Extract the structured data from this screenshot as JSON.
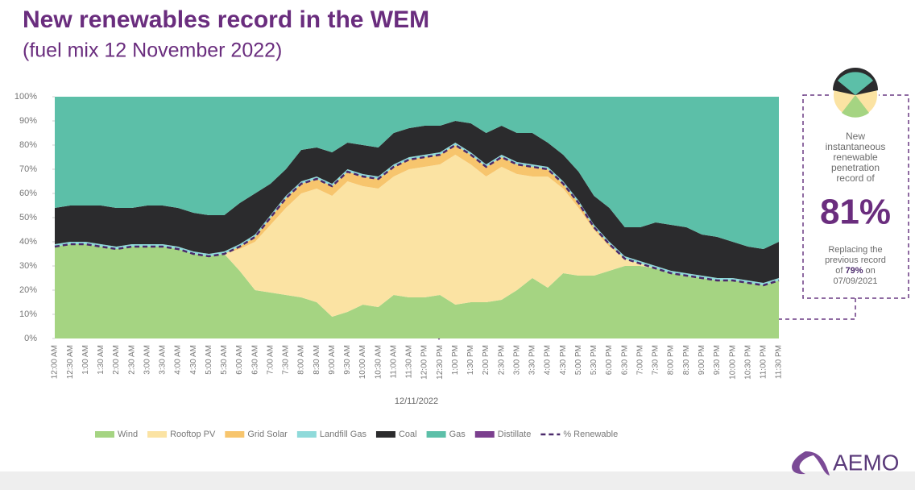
{
  "chart_data": {
    "type": "stacked_area",
    "title": "New renewables record in the WEM",
    "subtitle": "(fuel mix 12 November 2022)",
    "x_label": "12/11/2022",
    "categories": [
      "12:00 AM",
      "12:30 AM",
      "1:00 AM",
      "1:30 AM",
      "2:00 AM",
      "2:30 AM",
      "3:00 AM",
      "3:30 AM",
      "4:00 AM",
      "4:30 AM",
      "5:00 AM",
      "5:30 AM",
      "6:00 AM",
      "6:30 AM",
      "7:00 AM",
      "7:30 AM",
      "8:00 AM",
      "8:30 AM",
      "9:00 AM",
      "9:30 AM",
      "10:00 AM",
      "10:30 AM",
      "11:00 AM",
      "11:30 AM",
      "12:00 PM",
      "12:30 PM",
      "1:00 PM",
      "1:30 PM",
      "2:00 PM",
      "2:30 PM",
      "3:00 PM",
      "3:30 PM",
      "4:00 PM",
      "4:30 PM",
      "5:00 PM",
      "5:30 PM",
      "6:00 PM",
      "6:30 PM",
      "7:00 PM",
      "7:30 PM",
      "8:00 PM",
      "8:30 PM",
      "9:00 PM",
      "9:30 PM",
      "10:00 PM",
      "10:30 PM",
      "11:00 PM",
      "11:30 PM"
    ],
    "ylim": [
      0,
      100
    ],
    "yticks": [
      {
        "value": 0,
        "label": "0%"
      },
      {
        "value": 10,
        "label": "10%"
      },
      {
        "value": 20,
        "label": "20%"
      },
      {
        "value": 30,
        "label": "30%"
      },
      {
        "value": 40,
        "label": "40%"
      },
      {
        "value": 50,
        "label": "50%"
      },
      {
        "value": 60,
        "label": "60%"
      },
      {
        "value": 70,
        "label": "70%"
      },
      {
        "value": 80,
        "label": "80%"
      },
      {
        "value": 90,
        "label": "90%"
      },
      {
        "value": 100,
        "label": "100%"
      }
    ],
    "series": [
      {
        "name": "Wind",
        "color": "#a5d482",
        "values": [
          38,
          39,
          39,
          38,
          37,
          38,
          38,
          38,
          37,
          35,
          34,
          35,
          28,
          20,
          19,
          18,
          17,
          15,
          9,
          11,
          14,
          13,
          18,
          17,
          17,
          18,
          14,
          15,
          15,
          16,
          20,
          25,
          21,
          27,
          26,
          26,
          28,
          30,
          30,
          29,
          27,
          26,
          25,
          24,
          24,
          23,
          22,
          24
        ]
      },
      {
        "name": "Rooftop PV",
        "color": "#fbe3a3",
        "values": [
          0,
          0,
          0,
          0,
          0,
          0,
          0,
          0,
          0,
          0,
          0,
          0,
          9,
          20,
          28,
          36,
          43,
          47,
          50,
          54,
          49,
          49,
          49,
          53,
          54,
          54,
          62,
          57,
          52,
          55,
          48,
          42,
          46,
          35,
          28,
          19,
          10,
          3,
          1,
          0,
          0,
          0,
          0,
          0,
          0,
          0,
          0,
          0
        ]
      },
      {
        "name": "Grid Solar",
        "color": "#f7c56d",
        "values": [
          0,
          0,
          0,
          0,
          0,
          0,
          0,
          0,
          0,
          0,
          0,
          0,
          1,
          2,
          3,
          4,
          4,
          4,
          4,
          4,
          4,
          4,
          4,
          4,
          4,
          4,
          4,
          4,
          4,
          4,
          4,
          4,
          3,
          2,
          2,
          1,
          1,
          0,
          0,
          0,
          0,
          0,
          0,
          0,
          0,
          0,
          0,
          0
        ]
      },
      {
        "name": "Landfill Gas",
        "color": "#8fdada",
        "values": [
          1,
          1,
          1,
          1,
          1,
          1,
          1,
          1,
          1,
          1,
          1,
          1,
          1,
          1,
          1,
          1,
          1,
          1,
          1,
          1,
          1,
          1,
          1,
          1,
          1,
          1,
          1,
          1,
          1,
          1,
          1,
          1,
          1,
          1,
          1,
          1,
          1,
          1,
          1,
          1,
          1,
          1,
          1,
          1,
          1,
          1,
          1,
          1
        ]
      },
      {
        "name": "Coal",
        "color": "#2b2b2d",
        "values": [
          15,
          15,
          15,
          16,
          16,
          15,
          16,
          16,
          16,
          16,
          16,
          15,
          17,
          17,
          13,
          11,
          13,
          12,
          13,
          11,
          12,
          12,
          13,
          12,
          12,
          11,
          9,
          12,
          13,
          12,
          12,
          13,
          10,
          11,
          12,
          12,
          14,
          12,
          14,
          18,
          19,
          19,
          17,
          17,
          15,
          14,
          14,
          15
        ]
      },
      {
        "name": "Gas",
        "color": "#5cbfa8",
        "values": [
          46,
          45,
          45,
          45,
          46,
          46,
          45,
          45,
          46,
          48,
          49,
          49,
          44,
          40,
          36,
          30,
          22,
          21,
          23,
          19,
          20,
          21,
          15,
          13,
          12,
          12,
          10,
          11,
          15,
          12,
          15,
          15,
          19,
          24,
          31,
          41,
          46,
          54,
          54,
          52,
          53,
          54,
          57,
          58,
          60,
          62,
          63,
          60
        ]
      },
      {
        "name": "Distillate",
        "color": "#7b3f8e",
        "values": [
          0,
          0,
          0,
          0,
          0,
          0,
          0,
          0,
          0,
          0,
          0,
          0,
          0,
          0,
          0,
          0,
          0,
          0,
          0,
          0,
          0,
          0,
          0,
          0,
          0,
          0,
          0,
          0,
          0,
          0,
          0,
          0,
          0,
          0,
          0,
          0,
          0,
          0,
          0,
          0,
          0,
          0,
          0,
          0,
          0,
          0,
          0,
          0
        ]
      },
      {
        "name": "% Renewable",
        "color": "#4b2a6b",
        "kind": "line",
        "dash": true,
        "values": [
          38,
          39,
          39,
          38,
          37,
          38,
          38,
          38,
          37,
          35,
          34,
          35,
          38,
          42,
          50,
          58,
          64,
          66,
          63,
          69,
          67,
          66,
          71,
          74,
          75,
          76,
          80,
          76,
          71,
          75,
          72,
          71,
          70,
          64,
          56,
          46,
          39,
          33,
          31,
          29,
          27,
          26,
          25,
          24,
          24,
          23,
          22,
          24
        ]
      }
    ],
    "legend": "bottom",
    "callout": {
      "lines": [
        "New",
        "instantaneous",
        "renewable",
        "penetration",
        "record of"
      ],
      "value": "81%",
      "note_lines": [
        "Replacing the",
        "previous record"
      ],
      "note_parts": [
        "of",
        "79%",
        "on"
      ],
      "note_date": "07/09/2021"
    },
    "logo": "AEMO"
  }
}
